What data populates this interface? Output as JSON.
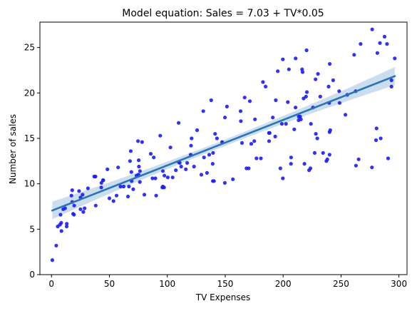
{
  "chart_data": {
    "type": "scatter",
    "title": "Model equation: Sales = 7.03 + TV*0.05",
    "xlabel": "TV Expenses",
    "ylabel": "Number of sales",
    "xlim": [
      -10,
      307
    ],
    "ylim": [
      0,
      27.8
    ],
    "xticks": [
      0,
      50,
      100,
      150,
      200,
      250,
      300
    ],
    "yticks": [
      0,
      5,
      10,
      15,
      20,
      25
    ],
    "grid": false,
    "point_color": "#1c1cf0",
    "line_color": "#2b74b3",
    "band_color": "#b9d3ea",
    "regression": {
      "intercept": 7.03,
      "slope": 0.05,
      "x_range": [
        0.7,
        296.4
      ],
      "ci_halfwidth_ends": 1.0,
      "ci_halfwidth_center": 0.35,
      "x_center": 147
    },
    "points": [
      [
        0.7,
        1.6
      ],
      [
        4.1,
        3.2
      ],
      [
        5.4,
        5.3
      ],
      [
        7.3,
        5.5
      ],
      [
        8.6,
        4.8
      ],
      [
        8.4,
        5.7
      ],
      [
        7.8,
        6.6
      ],
      [
        10.1,
        7.2
      ],
      [
        13.1,
        5.3
      ],
      [
        13.2,
        5.6
      ],
      [
        11.7,
        7.3
      ],
      [
        17.2,
        8.7
      ],
      [
        17.9,
        8.0
      ],
      [
        18.7,
        6.7
      ],
      [
        19.4,
        6.6
      ],
      [
        19.6,
        7.6
      ],
      [
        17.9,
        9.3
      ],
      [
        23.8,
        9.2
      ],
      [
        25.0,
        7.2
      ],
      [
        25.1,
        8.5
      ],
      [
        27.5,
        6.9
      ],
      [
        28.6,
        7.3
      ],
      [
        26.8,
        8.8
      ],
      [
        31.5,
        9.5
      ],
      [
        36.9,
        10.8
      ],
      [
        38.0,
        10.8
      ],
      [
        38.2,
        7.6
      ],
      [
        43.0,
        9.6
      ],
      [
        43.1,
        10.1
      ],
      [
        44.5,
        10.4
      ],
      [
        44.7,
        10.4
      ],
      [
        48.3,
        11.6
      ],
      [
        50.0,
        8.4
      ],
      [
        53.5,
        8.1
      ],
      [
        56.2,
        8.7
      ],
      [
        57.5,
        11.8
      ],
      [
        59.6,
        9.7
      ],
      [
        62.3,
        9.7
      ],
      [
        66.1,
        8.6
      ],
      [
        66.9,
        9.7
      ],
      [
        67.8,
        12.5
      ],
      [
        68.4,
        13.6
      ],
      [
        69.0,
        11.3
      ],
      [
        69.2,
        10.3
      ],
      [
        70.6,
        9.4
      ],
      [
        73.4,
        10.9
      ],
      [
        74.7,
        14.7
      ],
      [
        75.1,
        11.0
      ],
      [
        75.3,
        12.6
      ],
      [
        75.5,
        11.9
      ],
      [
        76.3,
        10.2
      ],
      [
        76.4,
        11.4
      ],
      [
        78.2,
        14.6
      ],
      [
        80.2,
        8.8
      ],
      [
        85.7,
        13.3
      ],
      [
        87.2,
        10.6
      ],
      [
        88.3,
        12.9
      ],
      [
        89.7,
        10.6
      ],
      [
        90.4,
        8.7
      ],
      [
        93.9,
        15.3
      ],
      [
        95.7,
        9.6
      ],
      [
        96.2,
        11.4
      ],
      [
        96.2,
        9.7
      ],
      [
        97.2,
        9.6
      ],
      [
        97.5,
        10.9
      ],
      [
        100.4,
        10.7
      ],
      [
        102.7,
        14.0
      ],
      [
        104.6,
        10.7
      ],
      [
        107.4,
        11.5
      ],
      [
        109.8,
        16.7
      ],
      [
        109.8,
        12.4
      ],
      [
        110.7,
        12.3
      ],
      [
        112.0,
        11.9
      ],
      [
        116.0,
        11.6
      ],
      [
        117.2,
        12.3
      ],
      [
        120.2,
        13.2
      ],
      [
        120.5,
        14.2
      ],
      [
        121.0,
        15.0
      ],
      [
        123.1,
        11.9
      ],
      [
        125.7,
        15.9
      ],
      [
        129.4,
        11.0
      ],
      [
        131.1,
        18.0
      ],
      [
        131.7,
        12.9
      ],
      [
        134.3,
        11.2
      ],
      [
        136.2,
        13.2
      ],
      [
        137.9,
        19.2
      ],
      [
        139.2,
        12.2
      ],
      [
        139.3,
        10.3
      ],
      [
        139.5,
        13.4
      ],
      [
        140.3,
        10.3
      ],
      [
        141.3,
        15.5
      ],
      [
        142.9,
        15.0
      ],
      [
        147.3,
        14.6
      ],
      [
        149.7,
        10.1
      ],
      [
        149.8,
        17.3
      ],
      [
        151.5,
        18.5
      ],
      [
        156.6,
        10.5
      ],
      [
        163.3,
        18.0
      ],
      [
        163.5,
        16.9
      ],
      [
        164.5,
        14.5
      ],
      [
        166.8,
        19.5
      ],
      [
        168.4,
        11.7
      ],
      [
        170.2,
        11.7
      ],
      [
        171.3,
        19.1
      ],
      [
        172.5,
        14.4
      ],
      [
        175.1,
        14.7
      ],
      [
        175.7,
        17.1
      ],
      [
        177.0,
        12.8
      ],
      [
        180.8,
        12.8
      ],
      [
        182.6,
        21.2
      ],
      [
        184.9,
        20.7
      ],
      [
        187.8,
        15.6
      ],
      [
        187.9,
        14.7
      ],
      [
        188.4,
        15.6
      ],
      [
        191.1,
        17.3
      ],
      [
        193.2,
        15.2
      ],
      [
        193.7,
        19.2
      ],
      [
        195.4,
        22.4
      ],
      [
        197.6,
        11.7
      ],
      [
        198.9,
        16.6
      ],
      [
        199.8,
        10.6
      ],
      [
        199.8,
        23.7
      ],
      [
        202.5,
        16.6
      ],
      [
        204.1,
        19.0
      ],
      [
        205.0,
        22.6
      ],
      [
        206.8,
        12.2
      ],
      [
        206.9,
        12.9
      ],
      [
        209.6,
        16.0
      ],
      [
        210.7,
        18.4
      ],
      [
        210.8,
        23.8
      ],
      [
        213.4,
        17.0
      ],
      [
        213.5,
        17.4
      ],
      [
        214.7,
        17.4
      ],
      [
        215.4,
        17.1
      ],
      [
        216.4,
        22.6
      ],
      [
        216.8,
        22.3
      ],
      [
        217.7,
        19.4
      ],
      [
        218.4,
        12.2
      ],
      [
        219.8,
        19.6
      ],
      [
        220.3,
        24.7
      ],
      [
        220.5,
        20.1
      ],
      [
        222.4,
        11.5
      ],
      [
        223.6,
        11.7
      ],
      [
        224.0,
        16.6
      ],
      [
        225.8,
        18.4
      ],
      [
        227.2,
        13.4
      ],
      [
        228.0,
        21.5
      ],
      [
        228.3,
        15.5
      ],
      [
        229.5,
        15.0
      ],
      [
        230.1,
        22.1
      ],
      [
        232.1,
        19.6
      ],
      [
        234.5,
        13.4
      ],
      [
        237.4,
        12.5
      ],
      [
        238.2,
        12.7
      ],
      [
        239.3,
        20.7
      ],
      [
        239.8,
        18.9
      ],
      [
        240.1,
        13.2
      ],
      [
        240.1,
        15.7
      ],
      [
        240.7,
        15.9
      ],
      [
        240.3,
        23.2
      ],
      [
        243.2,
        21.4
      ],
      [
        248.4,
        20.2
      ],
      [
        248.8,
        18.9
      ],
      [
        253.8,
        17.6
      ],
      [
        255.4,
        19.8
      ],
      [
        261.3,
        24.2
      ],
      [
        262.7,
        20.2
      ],
      [
        262.9,
        12.0
      ],
      [
        265.2,
        12.7
      ],
      [
        266.9,
        25.4
      ],
      [
        276.7,
        11.8
      ],
      [
        276.9,
        27.0
      ],
      [
        280.2,
        14.8
      ],
      [
        280.7,
        16.1
      ],
      [
        281.4,
        24.4
      ],
      [
        283.6,
        25.5
      ],
      [
        284.3,
        15.0
      ],
      [
        287.6,
        26.2
      ],
      [
        289.7,
        25.4
      ],
      [
        290.7,
        12.8
      ],
      [
        293.6,
        20.7
      ],
      [
        293.6,
        21.4
      ],
      [
        296.4,
        23.8
      ]
    ]
  }
}
